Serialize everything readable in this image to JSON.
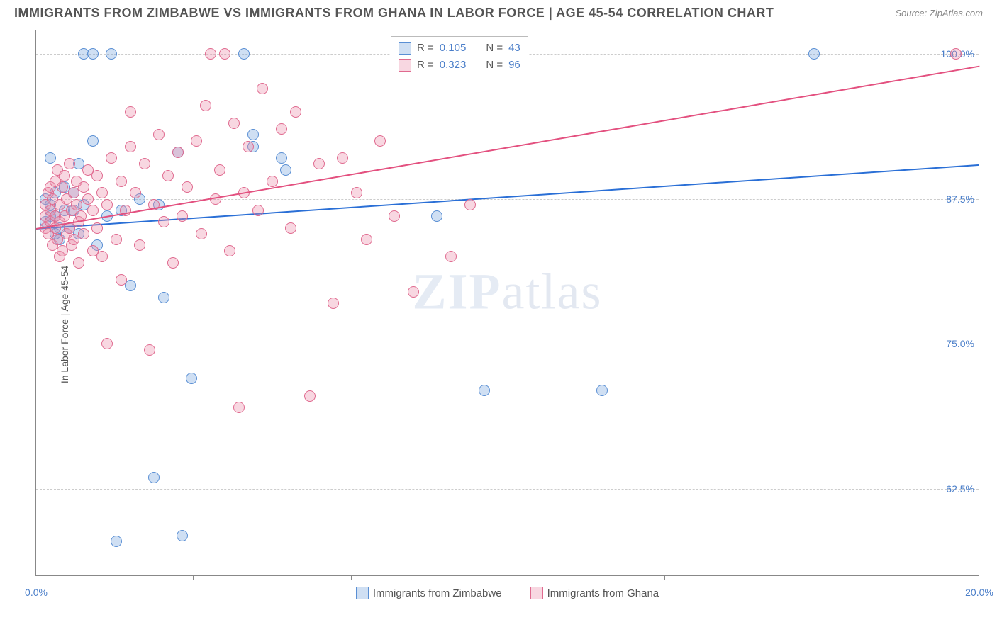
{
  "title": "IMMIGRANTS FROM ZIMBABWE VS IMMIGRANTS FROM GHANA IN LABOR FORCE | AGE 45-54 CORRELATION CHART",
  "source": "Source: ZipAtlas.com",
  "ylabel": "In Labor Force | Age 45-54",
  "watermark_a": "ZIP",
  "watermark_b": "atlas",
  "chart": {
    "type": "scatter",
    "background_color": "#ffffff",
    "grid_color": "#cccccc",
    "axis_color": "#888888",
    "xlim": [
      0.0,
      20.0
    ],
    "ylim": [
      55.0,
      102.0
    ],
    "ytick_values": [
      62.5,
      75.0,
      87.5,
      100.0
    ],
    "ytick_labels": [
      "62.5%",
      "75.0%",
      "87.5%",
      "100.0%"
    ],
    "xtick_values": [
      0.0,
      5.0,
      10.0,
      20.0
    ],
    "xtick_labels": [
      "0.0%",
      "",
      "",
      "20.0%"
    ],
    "xtick_minor": [
      3.33,
      6.67,
      10.0,
      13.33,
      16.67
    ],
    "marker_radius": 8,
    "marker_stroke_width": 1.5,
    "trend_line_width": 2,
    "text_color": "#555555",
    "value_color": "#4a7ec9"
  },
  "series": [
    {
      "key": "zimbabwe",
      "label": "Immigrants from Zimbabwe",
      "fill": "rgba(117,164,222,0.35)",
      "stroke": "#5a8fd4",
      "trend_color": "#2a6fd6",
      "R": "0.105",
      "N": "43",
      "trend": {
        "x1": 0.0,
        "y1": 85.0,
        "x2": 20.0,
        "y2": 90.5
      },
      "points": [
        [
          0.2,
          85.5
        ],
        [
          0.3,
          86.0
        ],
        [
          0.3,
          87.0
        ],
        [
          0.4,
          86.0
        ],
        [
          0.4,
          88.0
        ],
        [
          0.3,
          91.0
        ],
        [
          0.5,
          85.0
        ],
        [
          0.5,
          84.0
        ],
        [
          0.6,
          86.5
        ],
        [
          0.6,
          88.5
        ],
        [
          0.7,
          85.0
        ],
        [
          0.8,
          86.5
        ],
        [
          0.8,
          88.0
        ],
        [
          0.9,
          84.5
        ],
        [
          0.9,
          90.5
        ],
        [
          1.0,
          87.0
        ],
        [
          1.0,
          100.0
        ],
        [
          1.2,
          100.0
        ],
        [
          1.2,
          92.5
        ],
        [
          1.3,
          83.5
        ],
        [
          1.5,
          86.0
        ],
        [
          1.6,
          100.0
        ],
        [
          1.7,
          58.0
        ],
        [
          1.8,
          86.5
        ],
        [
          2.0,
          80.0
        ],
        [
          2.2,
          87.5
        ],
        [
          2.5,
          63.5
        ],
        [
          2.6,
          87.0
        ],
        [
          2.7,
          79.0
        ],
        [
          3.0,
          91.5
        ],
        [
          3.1,
          58.5
        ],
        [
          3.3,
          72.0
        ],
        [
          4.4,
          100.0
        ],
        [
          4.6,
          93.0
        ],
        [
          4.6,
          92.0
        ],
        [
          5.2,
          91.0
        ],
        [
          5.3,
          90.0
        ],
        [
          8.5,
          86.0
        ],
        [
          9.5,
          71.0
        ],
        [
          12.0,
          71.0
        ],
        [
          16.5,
          100.0
        ],
        [
          0.2,
          87.5
        ],
        [
          0.4,
          84.5
        ]
      ]
    },
    {
      "key": "ghana",
      "label": "Immigrants from Ghana",
      "fill": "rgba(236,140,168,0.35)",
      "stroke": "#e06a8f",
      "trend_color": "#e3507f",
      "R": "0.323",
      "N": "96",
      "trend": {
        "x1": 0.0,
        "y1": 85.0,
        "x2": 20.0,
        "y2": 99.0
      },
      "points": [
        [
          0.2,
          85.0
        ],
        [
          0.2,
          86.0
        ],
        [
          0.2,
          87.0
        ],
        [
          0.25,
          84.5
        ],
        [
          0.25,
          88.0
        ],
        [
          0.3,
          85.5
        ],
        [
          0.3,
          86.5
        ],
        [
          0.3,
          88.5
        ],
        [
          0.35,
          83.5
        ],
        [
          0.35,
          87.5
        ],
        [
          0.4,
          85.0
        ],
        [
          0.4,
          86.0
        ],
        [
          0.4,
          89.0
        ],
        [
          0.45,
          84.0
        ],
        [
          0.45,
          90.0
        ],
        [
          0.5,
          85.5
        ],
        [
          0.5,
          87.0
        ],
        [
          0.5,
          82.5
        ],
        [
          0.55,
          88.5
        ],
        [
          0.55,
          83.0
        ],
        [
          0.6,
          86.0
        ],
        [
          0.6,
          89.5
        ],
        [
          0.65,
          84.5
        ],
        [
          0.65,
          87.5
        ],
        [
          0.7,
          85.0
        ],
        [
          0.7,
          90.5
        ],
        [
          0.75,
          83.5
        ],
        [
          0.75,
          86.5
        ],
        [
          0.8,
          88.0
        ],
        [
          0.8,
          84.0
        ],
        [
          0.85,
          87.0
        ],
        [
          0.85,
          89.0
        ],
        [
          0.9,
          85.5
        ],
        [
          0.9,
          82.0
        ],
        [
          0.95,
          86.0
        ],
        [
          1.0,
          88.5
        ],
        [
          1.0,
          84.5
        ],
        [
          1.1,
          87.5
        ],
        [
          1.1,
          90.0
        ],
        [
          1.2,
          83.0
        ],
        [
          1.2,
          86.5
        ],
        [
          1.3,
          89.5
        ],
        [
          1.3,
          85.0
        ],
        [
          1.4,
          88.0
        ],
        [
          1.4,
          82.5
        ],
        [
          1.5,
          87.0
        ],
        [
          1.5,
          75.0
        ],
        [
          1.6,
          91.0
        ],
        [
          1.7,
          84.0
        ],
        [
          1.8,
          89.0
        ],
        [
          1.8,
          80.5
        ],
        [
          1.9,
          86.5
        ],
        [
          2.0,
          92.0
        ],
        [
          2.0,
          95.0
        ],
        [
          2.1,
          88.0
        ],
        [
          2.2,
          83.5
        ],
        [
          2.3,
          90.5
        ],
        [
          2.4,
          74.5
        ],
        [
          2.5,
          87.0
        ],
        [
          2.6,
          93.0
        ],
        [
          2.7,
          85.5
        ],
        [
          2.8,
          89.5
        ],
        [
          2.9,
          82.0
        ],
        [
          3.0,
          91.5
        ],
        [
          3.1,
          86.0
        ],
        [
          3.2,
          88.5
        ],
        [
          3.4,
          92.5
        ],
        [
          3.5,
          84.5
        ],
        [
          3.6,
          95.5
        ],
        [
          3.7,
          100.0
        ],
        [
          3.8,
          87.5
        ],
        [
          3.9,
          90.0
        ],
        [
          4.0,
          100.0
        ],
        [
          4.1,
          83.0
        ],
        [
          4.2,
          94.0
        ],
        [
          4.3,
          69.5
        ],
        [
          4.4,
          88.0
        ],
        [
          4.5,
          92.0
        ],
        [
          4.7,
          86.5
        ],
        [
          4.8,
          97.0
        ],
        [
          5.0,
          89.0
        ],
        [
          5.2,
          93.5
        ],
        [
          5.4,
          85.0
        ],
        [
          5.5,
          95.0
        ],
        [
          5.8,
          70.5
        ],
        [
          6.0,
          90.5
        ],
        [
          6.3,
          78.5
        ],
        [
          6.5,
          91.0
        ],
        [
          6.8,
          88.0
        ],
        [
          7.0,
          84.0
        ],
        [
          7.3,
          92.5
        ],
        [
          7.6,
          86.0
        ],
        [
          8.0,
          79.5
        ],
        [
          8.8,
          82.5
        ],
        [
          9.2,
          87.0
        ],
        [
          19.5,
          100.0
        ]
      ]
    }
  ],
  "corr_box": {
    "R_label": "R =",
    "N_label": "N ="
  }
}
